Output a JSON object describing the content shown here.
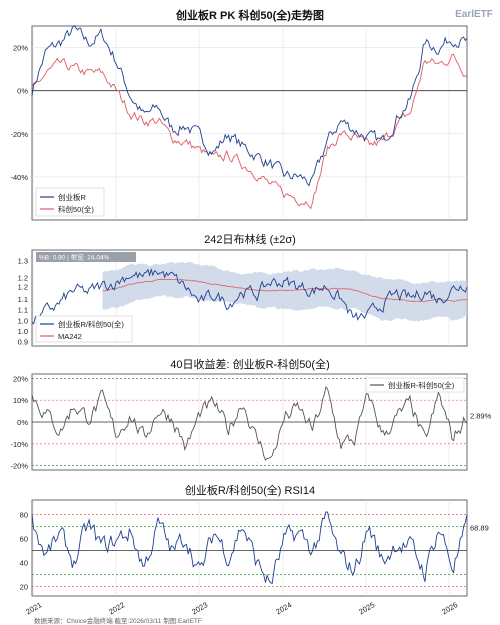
{
  "header": {
    "title": "创业板R PK 科创50(全)走势图",
    "brand": "EarlETF"
  },
  "footer": {
    "source": "数据来源：Choice金融终端 截至:2026/03/11 制图:EarlETF"
  },
  "colors": {
    "navy": "#1f3f8f",
    "red": "#e05a63",
    "band": "#c6d2e5",
    "grey": "#555555",
    "green": "#3a9a3a"
  },
  "x_axis": {
    "years": [
      "2021",
      "2022",
      "2023",
      "2024",
      "2025",
      "2026"
    ]
  },
  "chart_data": [
    {
      "type": "line",
      "title": "创业板R PK 科创50(全)走势图",
      "ylim": [
        -60,
        30
      ],
      "y_ticks": [
        "20%",
        "0%",
        "-20%",
        "-40%"
      ],
      "grid": true,
      "legend": "bottom-left",
      "series": [
        {
          "name": "创业板R",
          "color": "#1f3f8f",
          "values": [
            0,
            18,
            22,
            28,
            22,
            26,
            14,
            -2,
            -12,
            -8,
            -18,
            -16,
            -22,
            -28,
            -20,
            -26,
            -30,
            -34,
            -40,
            -40,
            -43,
            -24,
            -14,
            -18,
            -22,
            -24,
            -12,
            -4,
            22,
            20,
            25,
            22
          ]
        },
        {
          "name": "科创50(全)",
          "color": "#e05a63",
          "values": [
            0,
            8,
            12,
            10,
            8,
            8,
            0,
            -10,
            -14,
            -14,
            -22,
            -24,
            -28,
            -32,
            -30,
            -34,
            -38,
            -44,
            -48,
            -50,
            -51,
            -28,
            -20,
            -22,
            -26,
            -24,
            -16,
            -10,
            14,
            12,
            16,
            8
          ]
        }
      ]
    },
    {
      "type": "line",
      "title": "242日布林线 (±2σ)",
      "ylim": [
        0.9,
        1.35
      ],
      "y_ticks": [
        "1.3",
        "1.2",
        "1.2",
        "1.1",
        "1.1",
        "1.0",
        "1.0",
        "0.9"
      ],
      "annotation": "%B: 0.90 | 带宽: 24.04%",
      "legend": "bottom-left",
      "series": [
        {
          "name": "创业板R/科创50(全)",
          "color": "#1f3f8f",
          "values": [
            1.0,
            1.06,
            1.1,
            1.16,
            1.15,
            1.18,
            1.2,
            1.24,
            1.22,
            1.25,
            1.22,
            1.17,
            1.1,
            1.14,
            1.1,
            1.16,
            1.14,
            1.2,
            1.2,
            1.18,
            1.16,
            1.18,
            1.12,
            1.02,
            1.04,
            1.1,
            1.14,
            1.12,
            1.16,
            1.12,
            1.17,
            1.2
          ]
        },
        {
          "name": "MA242",
          "color": "#e05a63",
          "values": [
            null,
            null,
            null,
            null,
            null,
            1.16,
            1.17,
            1.19,
            1.2,
            1.21,
            1.21,
            1.21,
            1.2,
            1.19,
            1.18,
            1.17,
            1.16,
            1.16,
            1.16,
            1.16,
            1.17,
            1.17,
            1.17,
            1.16,
            1.14,
            1.12,
            1.12,
            1.11,
            1.11,
            1.12,
            1.11,
            1.12
          ]
        },
        {
          "name": "upper",
          "values": [
            null,
            null,
            null,
            null,
            null,
            1.25,
            1.26,
            1.28,
            1.28,
            1.28,
            1.29,
            1.29,
            1.28,
            1.27,
            1.25,
            1.24,
            1.24,
            1.24,
            1.25,
            1.25,
            1.26,
            1.26,
            1.26,
            1.25,
            1.23,
            1.22,
            1.21,
            1.2,
            1.2,
            1.2,
            1.2,
            1.2
          ]
        },
        {
          "name": "lower",
          "values": [
            null,
            null,
            null,
            null,
            null,
            1.07,
            1.08,
            1.1,
            1.12,
            1.14,
            1.13,
            1.13,
            1.12,
            1.11,
            1.11,
            1.1,
            1.08,
            1.08,
            1.07,
            1.07,
            1.08,
            1.08,
            1.08,
            1.07,
            1.05,
            1.02,
            1.03,
            1.02,
            1.02,
            1.04,
            1.02,
            1.04
          ]
        }
      ]
    },
    {
      "type": "line",
      "title": "40日收益差: 创业板R-科创50(全)",
      "ylim": [
        -22,
        22
      ],
      "y_ticks": [
        "20%",
        "10%",
        "0%",
        "-10%",
        "-20%"
      ],
      "last_value_label": "2.89%",
      "legend": "top-right",
      "series": [
        {
          "name": "创业板R-科创50(全)",
          "color": "#555555",
          "values": [
            12,
            4,
            -4,
            8,
            2,
            10,
            -6,
            4,
            -8,
            6,
            2,
            -12,
            4,
            8,
            -4,
            10,
            -8,
            -18,
            2,
            6,
            -4,
            14,
            -10,
            -8,
            12,
            -6,
            2,
            8,
            -10,
            12,
            -8,
            3
          ]
        }
      ]
    },
    {
      "type": "line",
      "title": "创业板R/科创50(全) RSI14",
      "ylim": [
        12,
        92
      ],
      "y_ticks": [
        "80",
        "60",
        "40",
        "20"
      ],
      "last_value_label": "68.89",
      "series": [
        {
          "name": "RSI14",
          "color": "#1f3f8f",
          "values": [
            75,
            46,
            62,
            40,
            70,
            52,
            58,
            66,
            36,
            72,
            48,
            62,
            30,
            66,
            46,
            72,
            40,
            22,
            58,
            64,
            50,
            76,
            42,
            34,
            70,
            40,
            58,
            52,
            32,
            70,
            36,
            69
          ]
        }
      ]
    }
  ]
}
